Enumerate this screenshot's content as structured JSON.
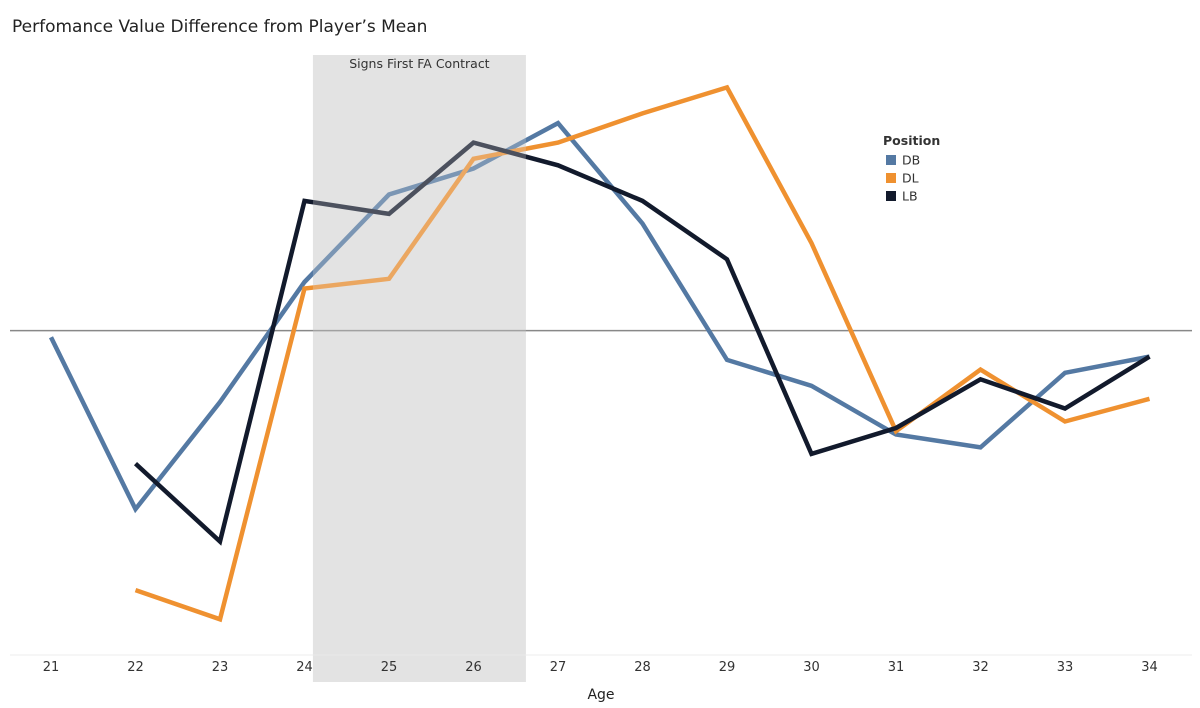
{
  "chart_data": {
    "type": "line",
    "title": "Perfomance Value Difference from Player’s Mean",
    "xlabel": "Age",
    "ylabel": "",
    "x": [
      21,
      22,
      23,
      24,
      25,
      26,
      27,
      28,
      29,
      30,
      31,
      32,
      33,
      34
    ],
    "ylim": [
      -1.0,
      0.85
    ],
    "zero_line": true,
    "grid": false,
    "legend": {
      "title": "Position",
      "placement": "top-right"
    },
    "annotation": {
      "label": "Signs First FA Contract",
      "x_range": [
        24.1,
        26.62
      ]
    },
    "series": [
      {
        "name": "DB",
        "color": "#5479a3",
        "values": [
          -0.02,
          -0.55,
          -0.22,
          0.15,
          0.42,
          0.5,
          0.64,
          0.33,
          -0.09,
          -0.17,
          -0.32,
          -0.36,
          -0.13,
          -0.08
        ]
      },
      {
        "name": "DL",
        "color": "#ef9130",
        "values": [
          null,
          -0.8,
          -0.89,
          0.13,
          0.16,
          0.53,
          0.58,
          0.67,
          0.75,
          0.27,
          -0.31,
          -0.12,
          -0.28,
          -0.21
        ]
      },
      {
        "name": "LB",
        "color": "#121a2c",
        "values": [
          null,
          -0.41,
          -0.65,
          0.4,
          0.36,
          0.58,
          0.51,
          0.4,
          0.22,
          -0.38,
          -0.3,
          -0.15,
          -0.24,
          -0.08
        ]
      }
    ]
  }
}
